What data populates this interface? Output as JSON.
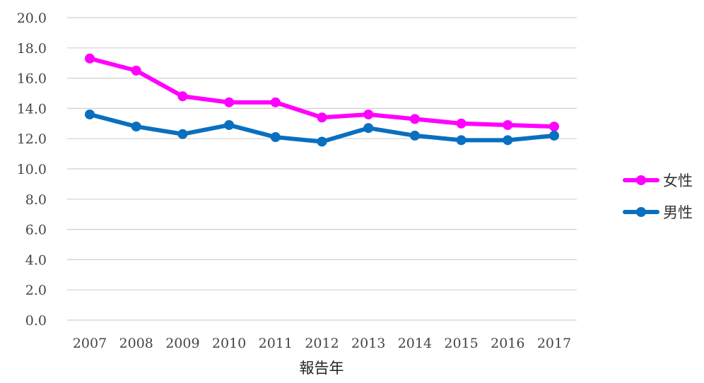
{
  "chart_data": {
    "type": "line",
    "categories": [
      "2007",
      "2008",
      "2009",
      "2010",
      "2011",
      "2012",
      "2013",
      "2014",
      "2015",
      "2016",
      "2017"
    ],
    "series": [
      {
        "name": "女性",
        "color": "#ff00ff",
        "values": [
          17.3,
          16.5,
          14.8,
          14.4,
          14.4,
          13.4,
          13.6,
          13.3,
          13.0,
          12.9,
          12.8
        ]
      },
      {
        "name": "男性",
        "color": "#0a6fbf",
        "values": [
          13.6,
          12.8,
          12.3,
          12.9,
          12.1,
          11.8,
          12.7,
          12.2,
          11.9,
          11.9,
          12.2
        ]
      }
    ],
    "y_ticks": [
      "0.0",
      "2.0",
      "4.0",
      "6.0",
      "8.0",
      "10.0",
      "12.0",
      "14.0",
      "16.0",
      "18.0",
      "20.0"
    ],
    "ylim": [
      0,
      20
    ],
    "xlabel": "報告年",
    "ylabel": "",
    "title": "",
    "grid": true,
    "legend_position": "right"
  }
}
